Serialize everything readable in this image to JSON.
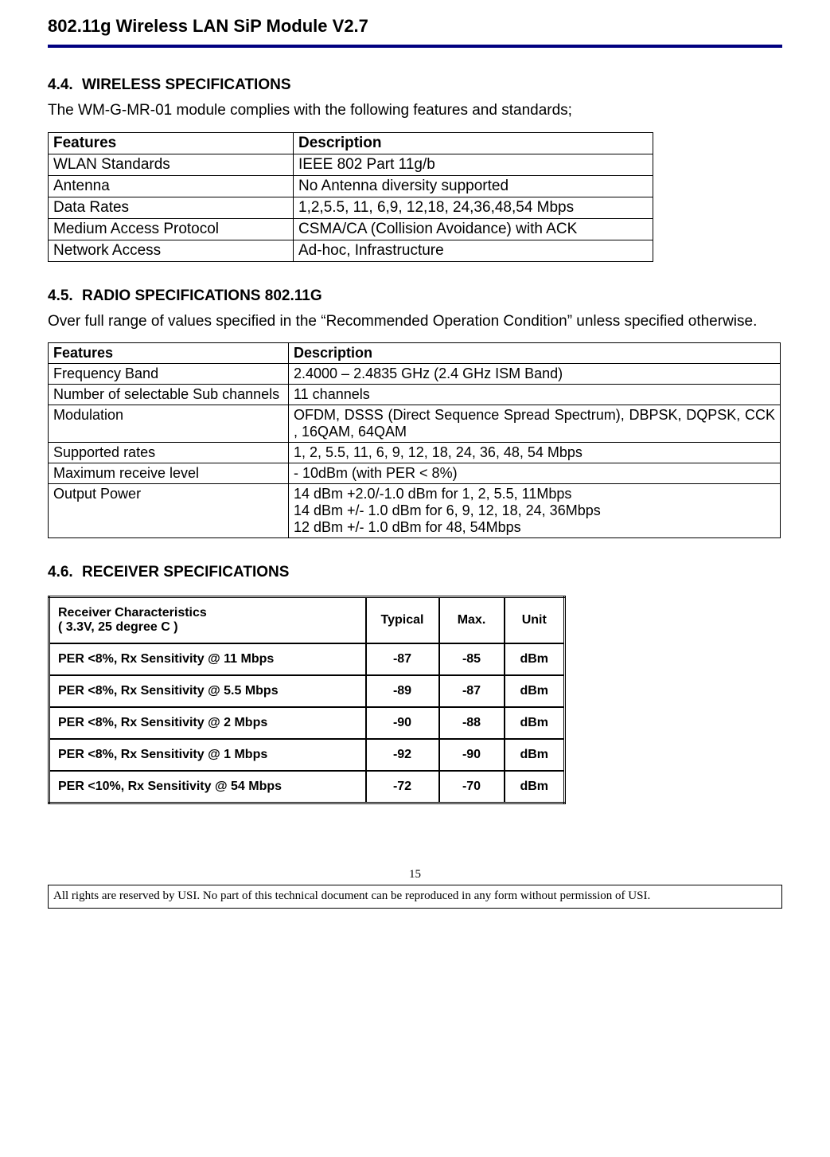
{
  "doc_title": "802.11g Wireless LAN SiP Module V2.7",
  "section_4_4": {
    "num": "4.4.",
    "title": "WIRELESS SPECIFICATIONS",
    "intro": "The WM-G-MR-01 module complies with the following features and standards;",
    "table": {
      "col_widths": [
        "308px",
        "452px"
      ],
      "headers": [
        "Features",
        "Description"
      ],
      "rows": [
        [
          "WLAN Standards",
          "IEEE 802 Part 11g/b"
        ],
        [
          "Antenna",
          "No Antenna diversity supported"
        ],
        [
          "Data Rates",
          "1,2,5.5, 11, 6,9, 12,18, 24,36,48,54 Mbps"
        ],
        [
          "Medium Access Protocol",
          "CSMA/CA (Collision Avoidance) with ACK"
        ],
        [
          "Network Access",
          "Ad-hoc, Infrastructure"
        ]
      ]
    }
  },
  "section_4_5": {
    "num": "4.5.",
    "title": "RADIO SPECIFICATIONS 802.11G",
    "intro": "Over full range of values specified in the “Recommended Operation Condition” unless specified otherwise.",
    "table": {
      "col_widths": [
        "302px",
        "618px"
      ],
      "headers": [
        "Features",
        "Description"
      ],
      "rows": [
        [
          "Frequency Band",
          "2.4000 – 2.4835 GHz (2.4 GHz ISM Band)"
        ],
        [
          "Number of selectable Sub channels",
          "11 channels"
        ],
        [
          "Modulation",
          "OFDM, DSSS (Direct Sequence Spread Spectrum), DBPSK, DQPSK, CCK , 16QAM, 64QAM"
        ],
        [
          "Supported rates",
          "1, 2, 5.5, 11, 6, 9, 12, 18, 24, 36, 48, 54 Mbps"
        ],
        [
          "Maximum receive level",
          "- 10dBm (with PER < 8%)"
        ],
        [
          "Output Power",
          "14 dBm +2.0/-1.0 dBm for 1, 2, 5.5, 11Mbps\n14 dBm +/- 1.0 dBm for 6, 9, 12, 18, 24, 36Mbps\n12 dBm +/- 1.0 dBm for 48, 54Mbps"
        ]
      ]
    }
  },
  "section_4_6": {
    "num": "4.6.",
    "title": "RECEIVER SPECIFICATIONS",
    "table": {
      "col_widths": [
        "398px",
        "92px",
        "82px",
        "76px"
      ],
      "header_row": {
        "c0_line1": "Receiver Characteristics",
        "c0_line2": "( 3.3V, 25 degree C )",
        "c1": "Typical",
        "c2": "Max.",
        "c3": "Unit"
      },
      "rows": [
        [
          "PER <8%, Rx Sensitivity @ 11 Mbps",
          "-87",
          "-85",
          "dBm"
        ],
        [
          "PER <8%, Rx Sensitivity @ 5.5 Mbps",
          "-89",
          "-87",
          "dBm"
        ],
        [
          "PER <8%, Rx Sensitivity @ 2 Mbps",
          "-90",
          "-88",
          "dBm"
        ],
        [
          "PER <8%, Rx Sensitivity @ 1 Mbps",
          "-92",
          "-90",
          "dBm"
        ],
        [
          "PER <10%, Rx Sensitivity @ 54 Mbps",
          "-72",
          "-70",
          "dBm"
        ]
      ]
    }
  },
  "page_number": "15",
  "footer": "All rights are reserved by USI. No part of this technical document can be reproduced in any form without permission of USI."
}
